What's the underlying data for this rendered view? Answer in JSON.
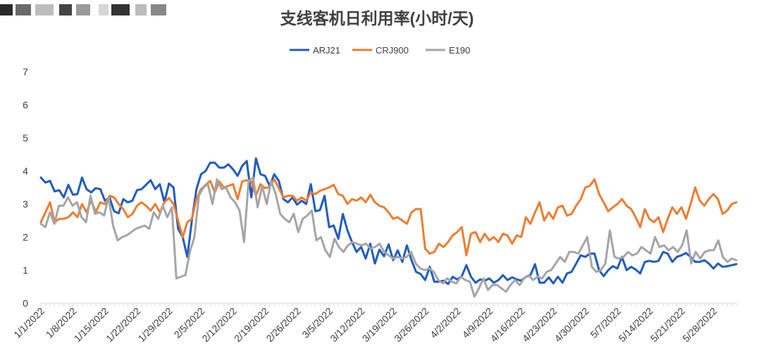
{
  "chart_data": {
    "type": "line",
    "title": "支线客机日利用率(小时/天)",
    "xlabel": "",
    "ylabel": "",
    "ylim": [
      0,
      7
    ],
    "yticks": [
      0,
      1,
      2,
      3,
      4,
      5,
      6,
      7
    ],
    "grid": false,
    "legend_position": "top",
    "x_tick_labels": [
      "1/1/2022",
      "1/8/2022",
      "1/15/2022",
      "1/22/2022",
      "1/29/2022",
      "2/5/2022",
      "2/12/2022",
      "2/19/2022",
      "2/26/2022",
      "3/5/2022",
      "3/12/2022",
      "3/19/2022",
      "3/26/2022",
      "4/2/2022",
      "4/9/2022",
      "4/16/2022",
      "4/23/2022",
      "4/30/2022",
      "5/7/2022",
      "5/14/2022",
      "5/21/2022",
      "5/28/2022"
    ],
    "x_start": "2022-01-01",
    "x_end": "2022-06-02",
    "series": [
      {
        "name": "ARJ21",
        "color": "#1f5cbf",
        "values": [
          3.8,
          3.65,
          3.7,
          3.38,
          3.42,
          3.2,
          3.58,
          3.28,
          3.3,
          3.8,
          3.45,
          3.35,
          3.48,
          3.45,
          3.1,
          3.2,
          2.78,
          2.72,
          3.15,
          3.05,
          3.1,
          3.42,
          3.45,
          3.58,
          3.72,
          3.45,
          3.6,
          3.05,
          3.62,
          3.5,
          2.25,
          2.0,
          1.4,
          2.5,
          3.45,
          3.9,
          4.0,
          4.25,
          4.25,
          4.1,
          4.1,
          4.2,
          4.05,
          3.85,
          4.15,
          4.3,
          3.2,
          4.38,
          3.9,
          3.85,
          3.55,
          3.9,
          3.7,
          3.15,
          3.05,
          3.2,
          2.98,
          3.1,
          3.0,
          3.6,
          2.78,
          2.82,
          3.25,
          2.3,
          2.35,
          1.95,
          2.7,
          2.2,
          1.85,
          1.55,
          1.7,
          1.35,
          1.8,
          1.2,
          1.62,
          1.42,
          1.78,
          1.3,
          1.6,
          1.25,
          1.75,
          1.3,
          0.95,
          0.88,
          0.7,
          1.1,
          0.65,
          0.65,
          0.68,
          0.58,
          0.8,
          0.72,
          0.82,
          1.15,
          0.8,
          0.62,
          0.72,
          0.68,
          0.75,
          0.62,
          0.7,
          0.85,
          0.7,
          0.78,
          0.72,
          0.68,
          0.8,
          0.85,
          1.18,
          0.62,
          0.62,
          0.78,
          0.6,
          0.8,
          0.62,
          0.9,
          0.95,
          1.2,
          1.45,
          1.4,
          1.5,
          1.5,
          1.0,
          0.82,
          1.0,
          1.12,
          1.05,
          1.4,
          1.0,
          1.1,
          1.02,
          0.9,
          1.25,
          1.28,
          1.25,
          1.28,
          1.55,
          1.5,
          1.25,
          1.4,
          1.45,
          1.52,
          1.4,
          1.25,
          1.25,
          1.3,
          1.2,
          1.05,
          1.2,
          1.1,
          1.12,
          1.15,
          1.18
        ]
      },
      {
        "name": "CRJ900",
        "color": "#ed7d31",
        "values": [
          2.45,
          2.75,
          3.05,
          2.45,
          2.55,
          2.55,
          2.6,
          2.75,
          2.6,
          3.0,
          2.75,
          3.12,
          2.75,
          3.05,
          3.0,
          3.25,
          3.2,
          3.0,
          2.85,
          2.6,
          2.7,
          2.95,
          3.05,
          2.95,
          2.8,
          3.0,
          2.75,
          3.05,
          3.18,
          3.0,
          2.5,
          2.0,
          2.45,
          2.55,
          3.15,
          3.45,
          3.58,
          3.7,
          3.35,
          3.68,
          3.5,
          3.55,
          3.6,
          3.15,
          3.68,
          3.72,
          3.68,
          3.25,
          3.6,
          3.48,
          3.52,
          3.75,
          3.48,
          3.2,
          3.25,
          3.25,
          3.1,
          3.2,
          3.1,
          3.35,
          3.3,
          3.4,
          3.45,
          3.5,
          3.58,
          3.3,
          3.25,
          3.0,
          3.15,
          3.1,
          3.2,
          3.05,
          3.28,
          3.05,
          2.95,
          2.9,
          2.75,
          2.55,
          2.6,
          2.5,
          2.4,
          2.75,
          2.85,
          2.85,
          1.65,
          1.5,
          1.55,
          1.8,
          1.7,
          1.85,
          2.05,
          2.15,
          2.3,
          1.45,
          2.1,
          2.15,
          1.85,
          2.1,
          1.9,
          2.0,
          1.85,
          2.1,
          2.05,
          1.8,
          2.05,
          2.0,
          2.6,
          2.4,
          2.75,
          3.05,
          2.5,
          2.75,
          2.55,
          2.9,
          2.95,
          2.65,
          2.7,
          2.95,
          3.15,
          3.5,
          3.55,
          3.75,
          3.3,
          3.05,
          2.78,
          2.9,
          3.0,
          3.15,
          2.95,
          2.85,
          2.6,
          2.3,
          2.85,
          2.55,
          2.45,
          2.6,
          2.15,
          2.55,
          2.9,
          2.7,
          2.9,
          2.55,
          3.0,
          3.5,
          3.1,
          2.95,
          3.15,
          3.3,
          3.15,
          2.7,
          2.8,
          3.0,
          3.05
        ]
      },
      {
        "name": "E190",
        "color": "#a5a5a5",
        "values": [
          2.4,
          2.3,
          2.75,
          2.4,
          2.95,
          2.95,
          3.2,
          2.95,
          3.05,
          2.6,
          2.45,
          3.25,
          2.7,
          2.75,
          2.65,
          3.2,
          2.35,
          1.9,
          2.0,
          2.05,
          2.15,
          2.25,
          2.3,
          2.35,
          2.25,
          2.75,
          2.55,
          2.95,
          2.6,
          2.9,
          0.75,
          0.8,
          0.85,
          1.55,
          2.0,
          3.25,
          3.5,
          3.6,
          3.0,
          3.75,
          3.45,
          3.5,
          3.2,
          3.05,
          2.8,
          1.85,
          3.7,
          3.8,
          2.9,
          3.55,
          3.0,
          3.7,
          3.3,
          2.7,
          2.55,
          2.45,
          2.7,
          2.15,
          2.55,
          2.65,
          2.8,
          1.9,
          2.0,
          1.6,
          1.4,
          1.95,
          1.7,
          1.55,
          1.75,
          1.85,
          1.8,
          1.75,
          1.8,
          1.65,
          1.7,
          1.8,
          1.55,
          1.45,
          1.35,
          1.4,
          1.35,
          1.4,
          1.55,
          1.2,
          1.05,
          1.0,
          1.05,
          0.95,
          0.7,
          0.6,
          0.75,
          0.65,
          0.6,
          0.8,
          0.7,
          0.65,
          0.2,
          0.45,
          0.75,
          0.4,
          0.55,
          0.55,
          0.45,
          0.35,
          0.55,
          0.7,
          0.55,
          0.75,
          0.85,
          0.7,
          0.8,
          0.75,
          0.95,
          1.0,
          1.2,
          1.4,
          1.25,
          1.55,
          1.55,
          1.5,
          1.75,
          2.0,
          1.1,
          0.95,
          1.0,
          1.2,
          2.2,
          1.4,
          1.35,
          1.4,
          1.55,
          1.45,
          1.5,
          1.7,
          1.6,
          1.5,
          2.0,
          1.7,
          1.75,
          1.6,
          1.7,
          1.55,
          1.75,
          2.2,
          1.2,
          1.55,
          1.35,
          1.55,
          1.6,
          1.6,
          1.9,
          1.4,
          1.25,
          1.35,
          1.3
        ]
      }
    ]
  }
}
